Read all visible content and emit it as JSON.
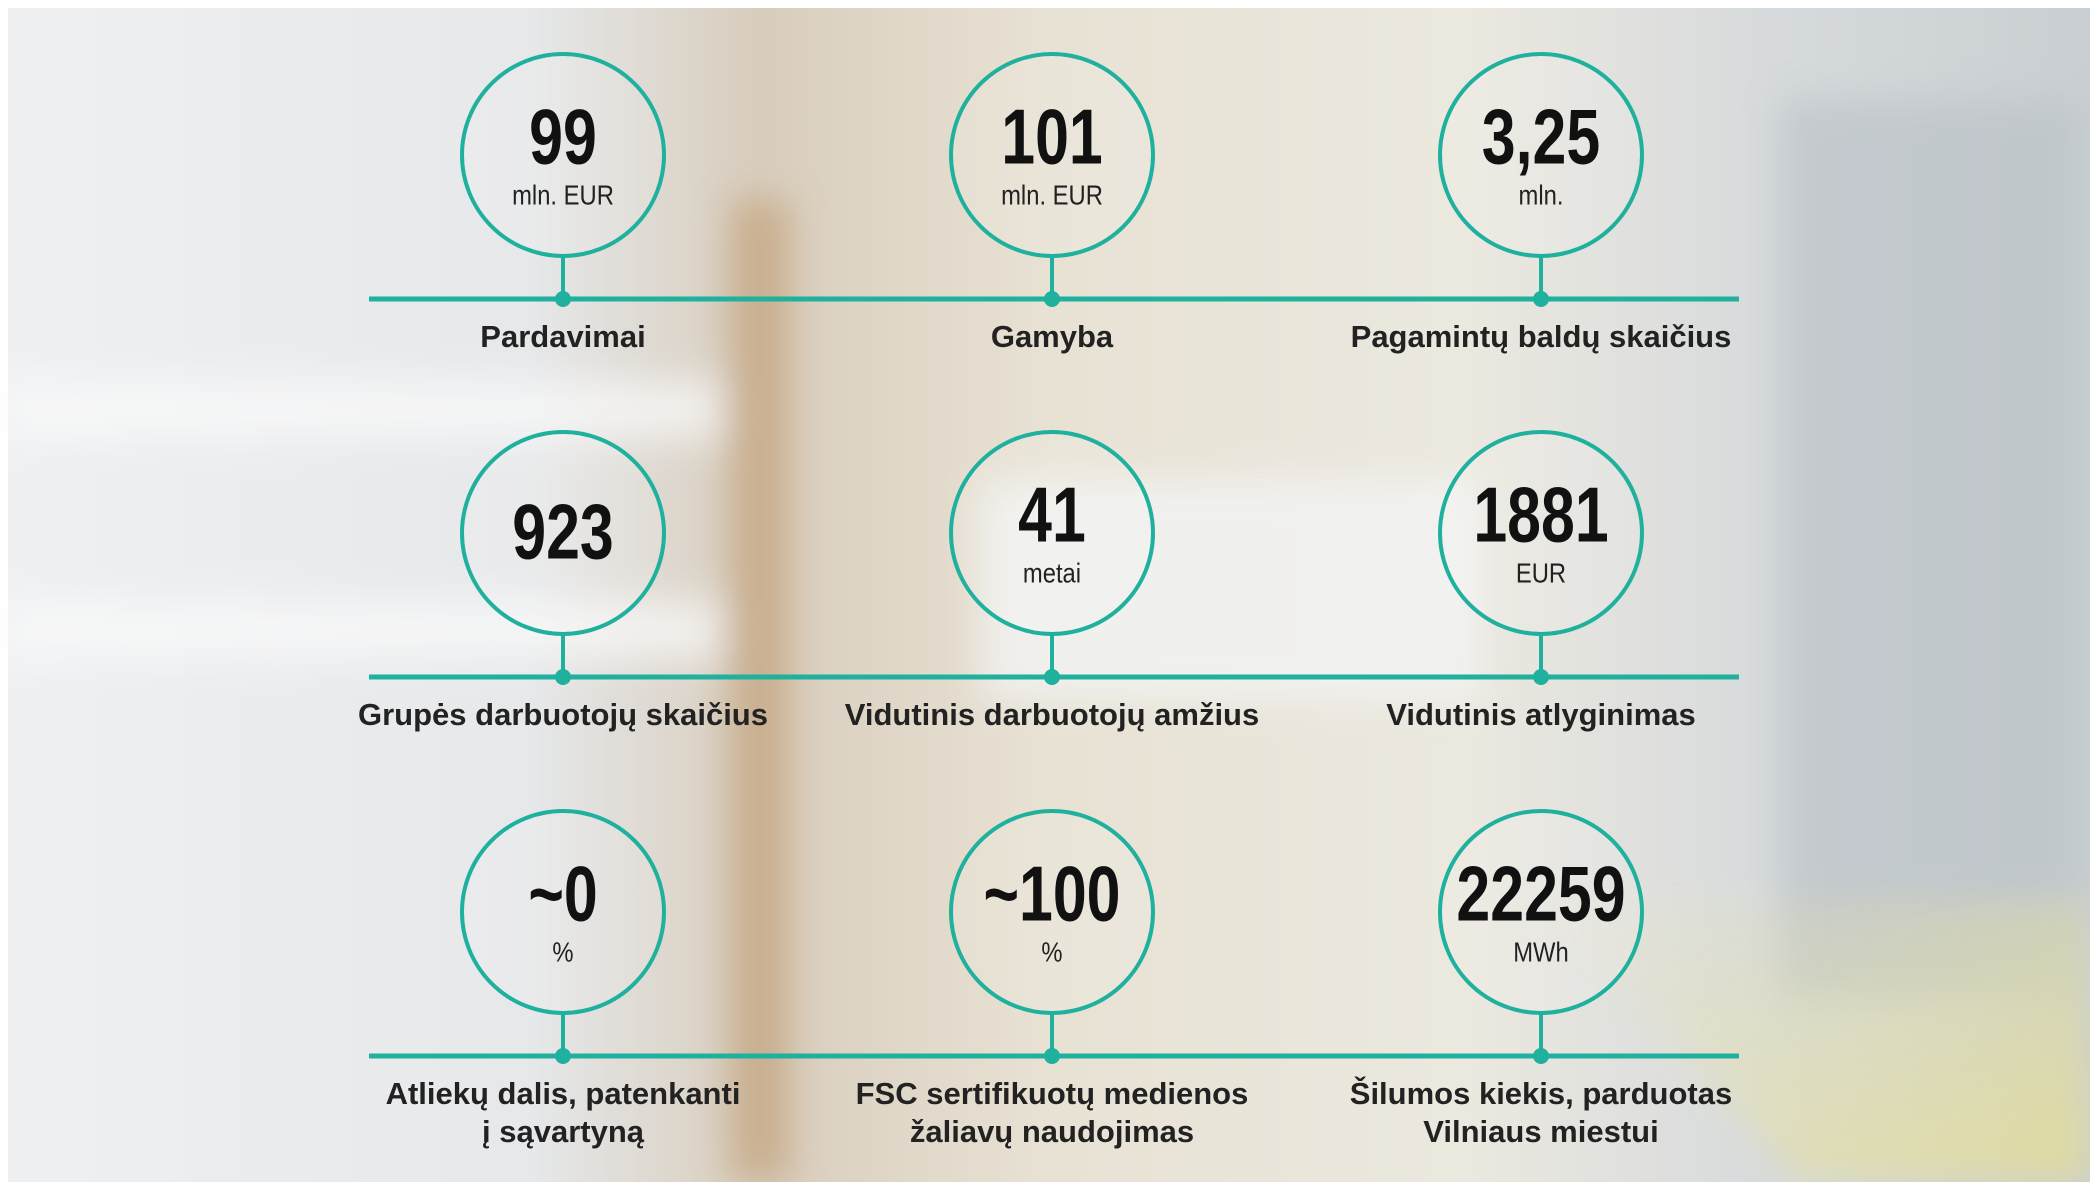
{
  "stats": [
    {
      "value": "99",
      "unit": "mln. EUR",
      "label_lines": [
        "Pardavimai"
      ]
    },
    {
      "value": "101",
      "unit": "mln. EUR",
      "label_lines": [
        "Gamyba"
      ]
    },
    {
      "value": "3,25",
      "unit": "mln.",
      "label_lines": [
        "Pagamintų baldų skaičius"
      ]
    },
    {
      "value": "923",
      "label_lines": [
        "Grupės darbuotojų skaičius"
      ]
    },
    {
      "value": "41",
      "unit": "metai",
      "label_lines": [
        "Vidutinis darbuotojų amžius"
      ]
    },
    {
      "value": "1881",
      "unit": "EUR",
      "label_lines": [
        "Vidutinis atlyginimas"
      ]
    },
    {
      "value": "~0",
      "unit": "%",
      "label_lines": [
        "Atliekų dalis, patenkanti",
        "į sąvartyną"
      ]
    },
    {
      "value": "~100",
      "unit": "%",
      "label_lines": [
        "FSC sertifikuotų medienos",
        "žaliavų naudojimas"
      ]
    },
    {
      "value": "22259",
      "unit": "MWh",
      "label_lines": [
        "Šilumos kiekis, parduotas",
        "Vilniaus miestui"
      ]
    }
  ]
}
